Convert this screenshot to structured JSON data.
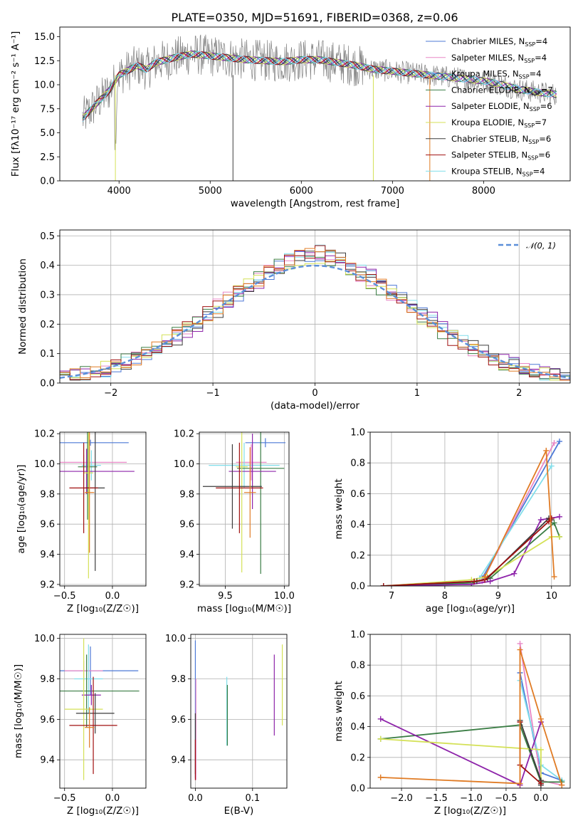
{
  "figure_title": "PLATE=0350, MJD=51691, FIBERID=0368, z=0.06",
  "colors": {
    "chabrier_miles": "#4c78d6",
    "salpeter_miles": "#e887c6",
    "kroupa_miles": "#4a90d9",
    "chabrier_elodie": "#3a7d44",
    "salpeter_elodie": "#8e24aa",
    "kroupa_elodie": "#d4e157",
    "chabrier_stelib": "#3d3d3d",
    "salpeter_stelib": "#a01010",
    "kroupa_stelib": "#80deea",
    "orange": "#e07b24",
    "data_gray": "#808080",
    "norm_dash": "#5b8fd9"
  },
  "chart_data": [
    {
      "id": "spectrum",
      "type": "line",
      "title": "PLATE=0350, MJD=51691, FIBERID=0368, z=0.06",
      "xlabel": "wavelength [Angstrom, rest frame]",
      "ylabel": "Flux [fλ10⁻¹⁷ erg cm⁻² s⁻¹ A⁻¹]",
      "xlim": [
        3350,
        8950
      ],
      "ylim": [
        0,
        16
      ],
      "xticks": [
        "4000",
        "5000",
        "6000",
        "7000",
        "8000"
      ],
      "yticks": [
        "0.0",
        "2.5",
        "5.0",
        "7.5",
        "10.0",
        "12.5",
        "15.0"
      ],
      "legend": [
        "Chabrier MILES, N_SSP=4",
        "Salpeter MILES, N_SSP=4",
        "Kroupa MILES, N_SSP=4",
        "Chabrier ELODIE, N_SSP=7",
        "Salpeter ELODIE, N_SSP=6",
        "Kroupa ELODIE, N_SSP=7",
        "Chabrier STELIB, N_SSP=6",
        "Salpeter STELIB, N_SSP=6",
        "Kroupa STELIB, N_SSP=4"
      ],
      "legend_position": "upper-right",
      "continuum_x": [
        3600,
        3700,
        3800,
        3900,
        4000,
        4100,
        4200,
        4300,
        4400,
        4600,
        4800,
        5000,
        5200,
        5400,
        5600,
        5800,
        6000,
        6200,
        6400,
        6600,
        6800,
        7000,
        7200,
        7400,
        7600,
        7800,
        8000,
        8200,
        8400,
        8600,
        8800
      ],
      "continuum_y": [
        6.5,
        7.5,
        8.5,
        9.5,
        11.0,
        11.5,
        12.0,
        11.6,
        12.3,
        12.8,
        13.2,
        13.0,
        12.8,
        12.6,
        12.5,
        12.4,
        12.6,
        12.6,
        12.3,
        12.0,
        11.6,
        11.4,
        11.2,
        11.0,
        10.8,
        10.6,
        10.4,
        10.0,
        9.5,
        9.2,
        9.0
      ]
    },
    {
      "id": "residuals",
      "type": "histogram",
      "xlabel": "(data-model)/error",
      "ylabel": "Normed distribution",
      "xlim": [
        -2.5,
        2.5
      ],
      "ylim": [
        0,
        0.52
      ],
      "xticks": [
        "−2",
        "−1",
        "0",
        "1",
        "2"
      ],
      "yticks": [
        "0.0",
        "0.1",
        "0.2",
        "0.3",
        "0.4",
        "0.5"
      ],
      "legend": [
        "𝒩(0, 1)"
      ],
      "legend_position": "upper-right",
      "bin_width": 0.1,
      "series": [
        {
          "shift": 0.02,
          "peak_boost": 0.1
        },
        {
          "shift": -0.03,
          "peak_boost": 0.08
        },
        {
          "shift": 0.04,
          "peak_boost": 0.12
        },
        {
          "shift": -0.05,
          "peak_boost": 0.09
        },
        {
          "shift": 0.05,
          "peak_boost": 0.11
        },
        {
          "shift": -0.02,
          "peak_boost": 0.07
        },
        {
          "shift": 0.03,
          "peak_boost": 0.1
        },
        {
          "shift": -0.04,
          "peak_boost": 0.12
        },
        {
          "shift": 0.01,
          "peak_boost": 0.09
        }
      ]
    },
    {
      "id": "age_vs_Z",
      "type": "scatter",
      "xlabel": "Z [log₁₀(Z/Z☉)]",
      "ylabel": "age  [log₁₀(age/yr)]",
      "xlim": [
        -0.55,
        0.35
      ],
      "ylim": [
        9.19,
        10.21
      ],
      "xticks": [
        "−0.5",
        "0.0"
      ],
      "yticks": [
        "9.2",
        "9.4",
        "9.6",
        "9.8",
        "10.0",
        "10.2"
      ],
      "points": [
        {
          "x": -0.23,
          "y": 10.14,
          "xerr": 0.4,
          "yerr": 0.02
        },
        {
          "x": -0.3,
          "y": 10.01,
          "xerr": 0.45,
          "yerr": 0.05
        },
        {
          "x": -0.22,
          "y": 9.99,
          "xerr": 0.1,
          "yerr": 0.1
        },
        {
          "x": -0.26,
          "y": 9.98,
          "xerr": 0.1,
          "yerr": 0.35
        },
        {
          "x": -0.27,
          "y": 9.95,
          "xerr": 0.5,
          "yerr": 0.15
        },
        {
          "x": -0.25,
          "y": 9.94,
          "xerr": 0.05,
          "yerr": 0.7
        },
        {
          "x": -0.18,
          "y": 9.84,
          "xerr": 0.1,
          "yerr": 0.55
        },
        {
          "x": -0.3,
          "y": 9.84,
          "xerr": 0.15,
          "yerr": 0.3
        },
        {
          "x": -0.24,
          "y": 9.81,
          "xerr": 0.05,
          "yerr": 0.4
        }
      ]
    },
    {
      "id": "age_vs_mass",
      "type": "scatter",
      "xlabel": "mass [log₁₀(M/M☉)]",
      "ylabel": "",
      "xlim": [
        9.28,
        10.04
      ],
      "ylim": [
        9.19,
        10.21
      ],
      "xticks": [
        "9.5",
        "10.0"
      ],
      "yticks": [
        "9.2",
        "9.4",
        "9.6",
        "9.8",
        "10.0",
        "10.2"
      ],
      "points": [
        {
          "x": 9.84,
          "y": 10.14,
          "xerr": 0.17,
          "yerr": 0.03
        },
        {
          "x": 9.72,
          "y": 10.01,
          "xerr": 0.13,
          "yerr": 0.12
        },
        {
          "x": 9.66,
          "y": 9.99,
          "xerr": 0.3,
          "yerr": 0.15
        },
        {
          "x": 9.8,
          "y": 9.97,
          "xerr": 0.2,
          "yerr": 0.7
        },
        {
          "x": 9.73,
          "y": 9.95,
          "xerr": 0.2,
          "yerr": 0.25
        },
        {
          "x": 9.64,
          "y": 9.98,
          "xerr": 0.05,
          "yerr": 0.7
        },
        {
          "x": 9.56,
          "y": 9.85,
          "xerr": 0.25,
          "yerr": 0.28
        },
        {
          "x": 9.62,
          "y": 9.84,
          "xerr": 0.2,
          "yerr": 0.3
        },
        {
          "x": 9.71,
          "y": 9.81,
          "xerr": 0.05,
          "yerr": 0.3
        }
      ]
    },
    {
      "id": "massweight_vs_age",
      "type": "line",
      "xlabel": "age  [log₁₀(age/yr)]",
      "ylabel": "mass weight",
      "xlim": [
        6.6,
        10.35
      ],
      "ylim": [
        0,
        1
      ],
      "xticks": [
        "7",
        "8",
        "9",
        "10"
      ],
      "yticks": [
        "0.0",
        "0.2",
        "0.4",
        "0.6",
        "0.8",
        "1.0"
      ],
      "series": [
        {
          "x": [
            8.7,
            10.15
          ],
          "y": [
            0.05,
            0.94
          ]
        },
        {
          "x": [
            8.7,
            10.05
          ],
          "y": [
            0.03,
            0.93
          ]
        },
        {
          "x": [
            8.65,
            10.0
          ],
          "y": [
            0.05,
            0.78
          ]
        },
        {
          "x": [
            6.85,
            8.5,
            8.85,
            10.05,
            10.15
          ],
          "y": [
            0.0,
            0.02,
            0.05,
            0.41,
            0.32
          ]
        },
        {
          "x": [
            6.85,
            8.5,
            8.85,
            9.3,
            9.8,
            10.15
          ],
          "y": [
            0.0,
            0.01,
            0.03,
            0.08,
            0.43,
            0.45
          ]
        },
        {
          "x": [
            6.85,
            8.5,
            8.8,
            10.0,
            10.15
          ],
          "y": [
            0.0,
            0.04,
            0.06,
            0.32,
            0.32
          ]
        },
        {
          "x": [
            6.85,
            8.6,
            8.8,
            9.95,
            10.0
          ],
          "y": [
            0.0,
            0.03,
            0.05,
            0.44,
            0.43
          ]
        },
        {
          "x": [
            6.85,
            8.55,
            8.75,
            9.95,
            10.0
          ],
          "y": [
            0.0,
            0.03,
            0.04,
            0.42,
            0.44
          ]
        },
        {
          "x": [
            8.75,
            9.9,
            10.05
          ],
          "y": [
            0.06,
            0.88,
            0.06
          ]
        }
      ]
    },
    {
      "id": "mass_vs_Z",
      "type": "scatter",
      "xlabel": "Z [log₁₀(Z/Z☉)]",
      "ylabel": "mass [log₁₀(M/M☉)]",
      "xlim": [
        -0.55,
        0.35
      ],
      "ylim": [
        9.26,
        10.02
      ],
      "xticks": [
        "−0.5",
        "0.0"
      ],
      "yticks": [
        "9.4",
        "9.6",
        "9.8",
        "10.0"
      ],
      "points": [
        {
          "x": -0.23,
          "y": 9.84,
          "xerr": 0.5,
          "yerr": 0.12
        },
        {
          "x": -0.3,
          "y": 9.84,
          "xerr": 0.2,
          "yerr": 0.05
        },
        {
          "x": -0.25,
          "y": 9.8,
          "xerr": 0.15,
          "yerr": 0.17
        },
        {
          "x": -0.27,
          "y": 9.74,
          "xerr": 0.55,
          "yerr": 0.18
        },
        {
          "x": -0.22,
          "y": 9.72,
          "xerr": 0.1,
          "yerr": 0.05
        },
        {
          "x": -0.3,
          "y": 9.65,
          "xerr": 0.2,
          "yerr": 0.35
        },
        {
          "x": -0.18,
          "y": 9.63,
          "xerr": 0.2,
          "yerr": 0.1
        },
        {
          "x": -0.2,
          "y": 9.57,
          "xerr": 0.25,
          "yerr": 0.24
        },
        {
          "x": -0.24,
          "y": 9.56,
          "xerr": 0.05,
          "yerr": 0.1
        }
      ]
    },
    {
      "id": "mass_vs_ebv",
      "type": "scatter",
      "xlabel": "E(B-V)",
      "ylabel": "",
      "xlim": [
        -0.008,
        0.16
      ],
      "ylim": [
        9.26,
        10.02
      ],
      "xticks": [
        "0.0",
        "0.1"
      ],
      "yticks": [
        "9.4",
        "9.6",
        "9.8",
        "10.0"
      ],
      "points": [
        {
          "x": 0.0,
          "y": 9.65,
          "xerr": 0,
          "yerr": 0.34
        },
        {
          "x": 0.001,
          "y": 9.55,
          "xerr": 0,
          "yerr": 0.25
        },
        {
          "x": 0.055,
          "y": 9.64,
          "xerr": 0,
          "yerr": 0.17
        },
        {
          "x": 0.056,
          "y": 9.62,
          "xerr": 0,
          "yerr": 0.15
        },
        {
          "x": 0.138,
          "y": 9.72,
          "xerr": 0,
          "yerr": 0.2
        },
        {
          "x": 0.152,
          "y": 9.77,
          "xerr": 0,
          "yerr": 0.2
        },
        {
          "x": 0.0,
          "y": 9.48,
          "xerr": 0,
          "yerr": 0.15
        },
        {
          "x": 0.0,
          "y": 9.4,
          "xerr": 0,
          "yerr": 0.1
        }
      ]
    },
    {
      "id": "massweight_vs_Z",
      "type": "line",
      "xlabel": "Z [log₁₀(Z/Z☉)]",
      "ylabel": "mass weight",
      "xlim": [
        -2.45,
        0.42
      ],
      "ylim": [
        0,
        1
      ],
      "xticks": [
        "−2.0",
        "−1.5",
        "−1.0",
        "−0.5",
        "0.0"
      ],
      "yticks": [
        "0.0",
        "0.2",
        "0.4",
        "0.6",
        "0.8",
        "1.0"
      ],
      "series": [
        {
          "x": [
            -0.3,
            0.0,
            0.3
          ],
          "y": [
            0.75,
            0.1,
            0.05
          ]
        },
        {
          "x": [
            -0.3,
            0.0,
            0.3
          ],
          "y": [
            0.94,
            0.05,
            0.02
          ]
        },
        {
          "x": [
            -0.3,
            0.0,
            0.3
          ],
          "y": [
            0.7,
            0.15,
            0.05
          ]
        },
        {
          "x": [
            -2.3,
            -0.3,
            0.0,
            0.3
          ],
          "y": [
            0.32,
            0.41,
            0.04,
            0.04
          ]
        },
        {
          "x": [
            -2.3,
            -0.3,
            0.0
          ],
          "y": [
            0.45,
            0.02,
            0.43
          ]
        },
        {
          "x": [
            -2.3,
            0.0,
            0.0
          ],
          "y": [
            0.32,
            0.25,
            0.05
          ]
        },
        {
          "x": [
            -0.3,
            0.0,
            0.0
          ],
          "y": [
            0.44,
            0.05,
            0.02
          ]
        },
        {
          "x": [
            -0.3,
            -0.3,
            0.0
          ],
          "y": [
            0.43,
            0.15,
            0.03
          ]
        },
        {
          "x": [
            -2.3,
            -0.3,
            -0.3,
            0.0,
            0.3
          ],
          "y": [
            0.07,
            0.03,
            0.9,
            0.45,
            0.02
          ]
        }
      ]
    }
  ]
}
